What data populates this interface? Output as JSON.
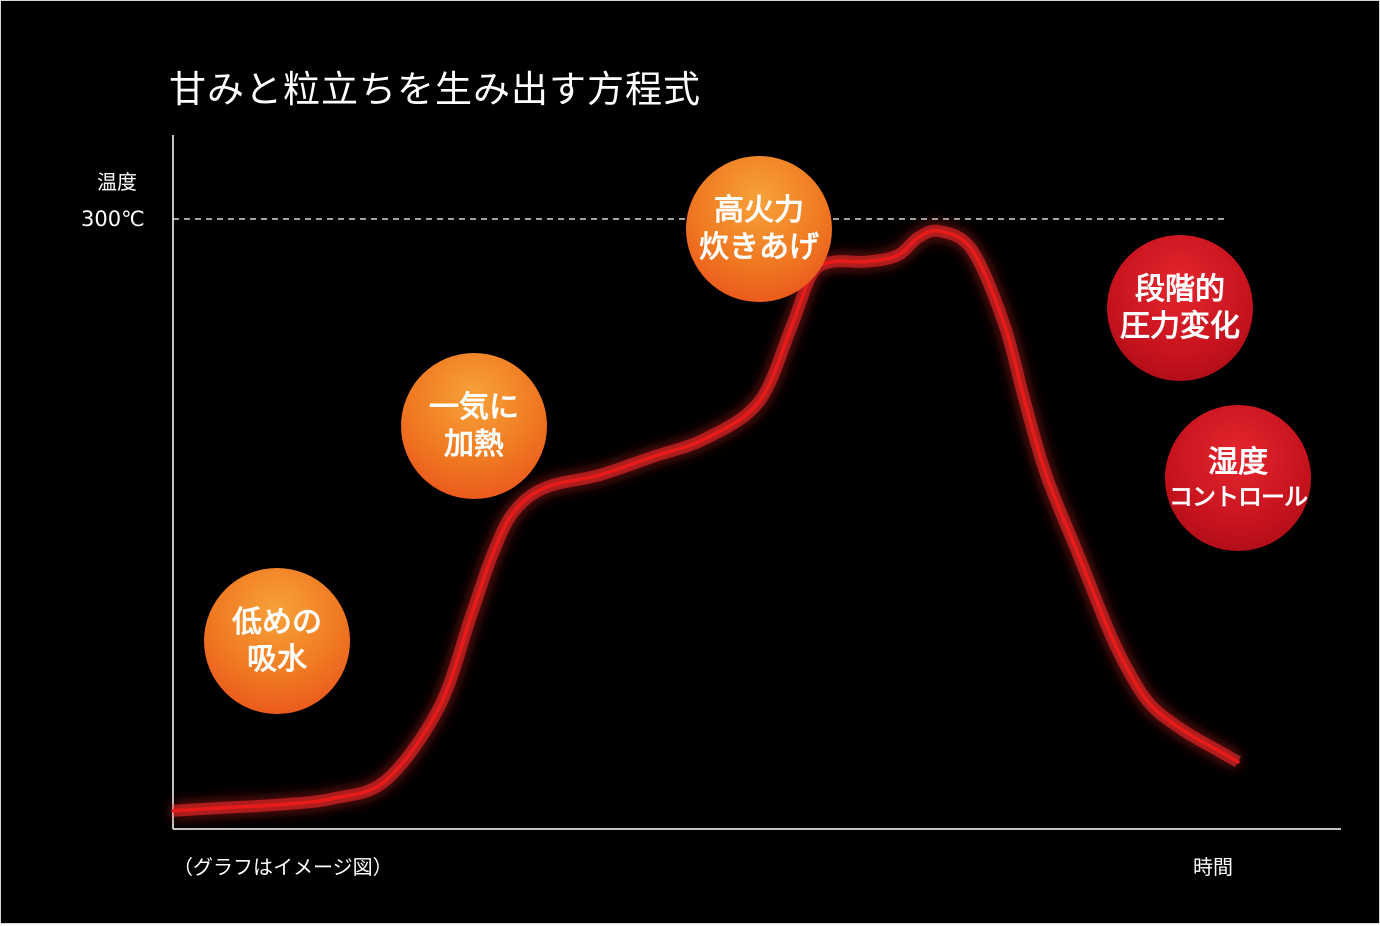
{
  "chart_data": {
    "type": "line",
    "title": "甘みと粒立ちを生み出す方程式",
    "xlabel": "時間",
    "ylabel": "温度",
    "y_ticks": [
      "300℃"
    ],
    "note": "（グラフはイメージ図）",
    "reference_line": {
      "label": "300℃",
      "style": "dashed"
    },
    "series": [
      {
        "color": "#e81a1a",
        "x": [
          0,
          5,
          10,
          15,
          20,
          25,
          28,
          30,
          32,
          35,
          40,
          45,
          50,
          55,
          58,
          60,
          62,
          65,
          68,
          70,
          72,
          75,
          78,
          80,
          82,
          85,
          88,
          90,
          92,
          95,
          98,
          100
        ],
        "y": [
          3,
          3.5,
          4,
          5,
          8,
          20,
          35,
          45,
          52,
          56,
          58,
          61,
          64,
          70,
          82,
          91,
          93,
          93,
          94,
          97,
          98,
          95,
          83,
          70,
          58,
          45,
          32,
          25,
          20,
          16,
          13,
          11
        ]
      }
    ],
    "ylim": [
      0,
      100
    ],
    "grid": false,
    "annotations": [
      {
        "lines": [
          "低めの",
          "吸水"
        ],
        "color": "#f07a22"
      },
      {
        "lines": [
          "一気に",
          "加熱"
        ],
        "color": "#f07a22"
      },
      {
        "lines": [
          "高火力",
          "炊きあげ"
        ],
        "color": "#f07a22"
      },
      {
        "lines": [
          "段階的",
          "圧力変化"
        ],
        "color": "#c5121d"
      },
      {
        "lines": [
          "湿度",
          "コントロール"
        ],
        "color": "#c5121d"
      }
    ]
  }
}
